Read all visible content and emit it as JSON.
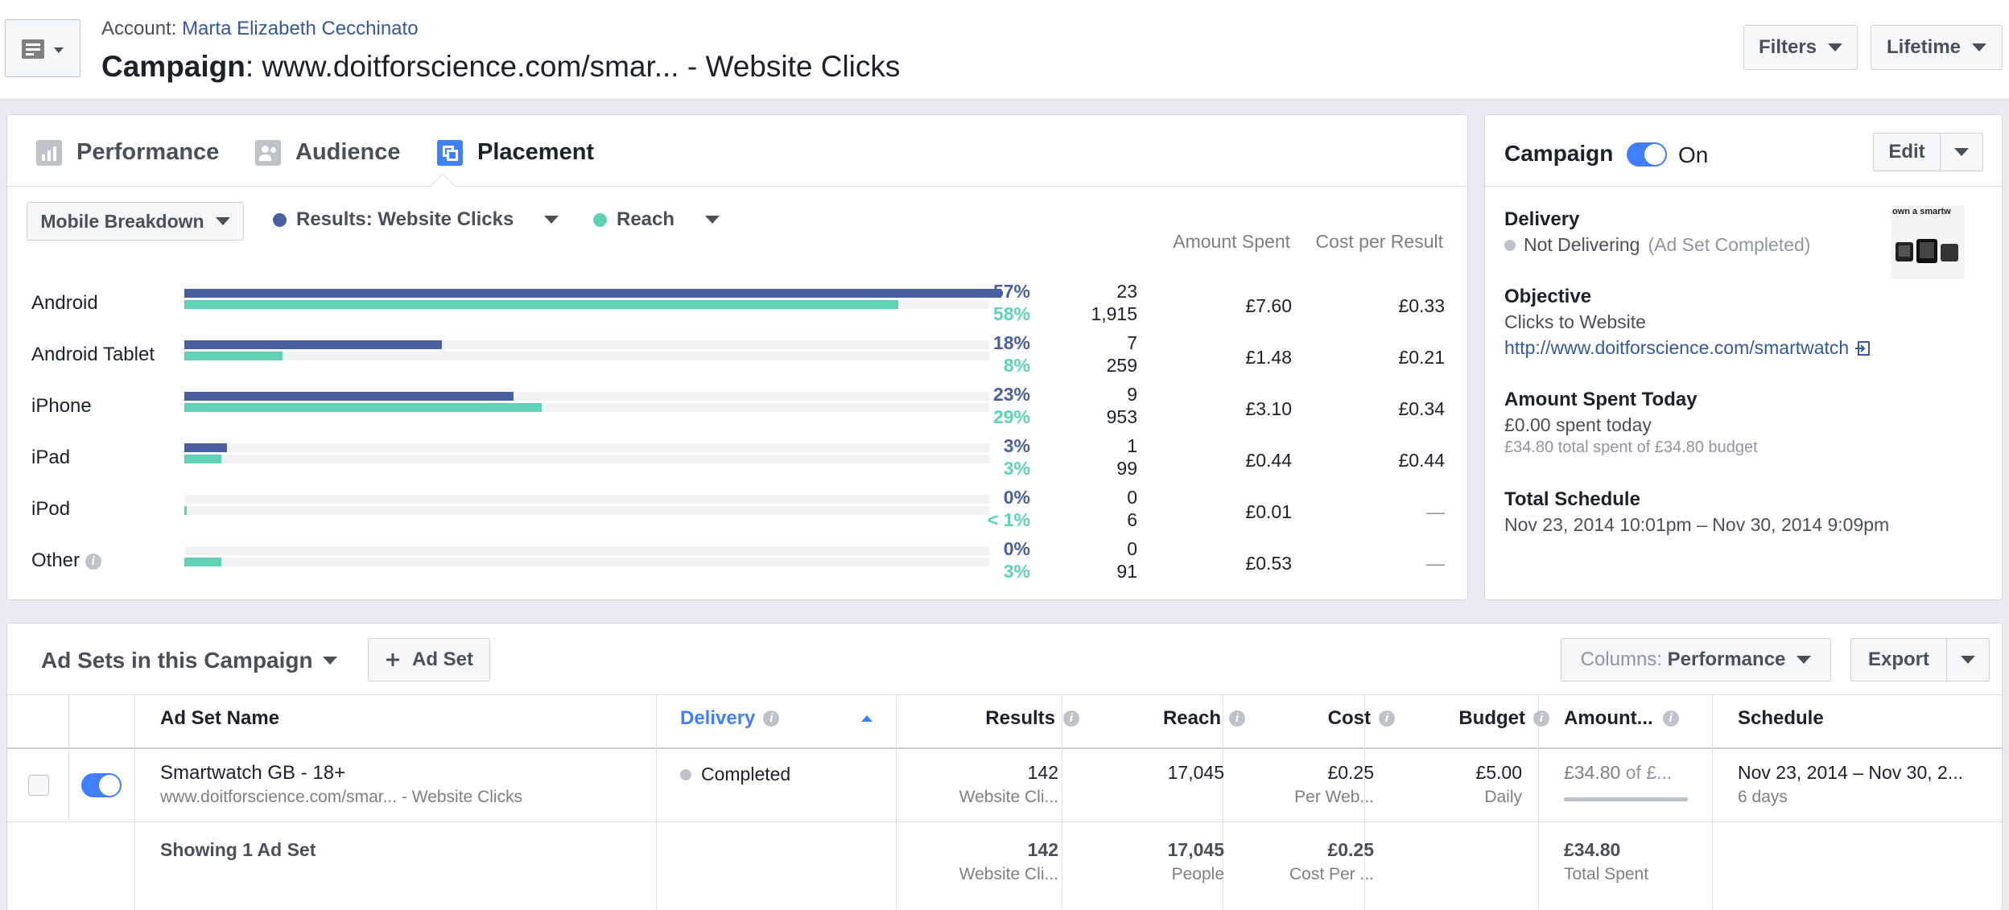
{
  "header": {
    "account_label": "Account",
    "account_name": "Marta Elizabeth Cecchinato",
    "campaign_label": "Campaign",
    "campaign_name": ": www.doitforscience.com/smar... - Website Clicks",
    "filters_label": "Filters",
    "lifetime_label": "Lifetime"
  },
  "tabs": [
    {
      "label": "Performance",
      "icon": "bar-chart-icon"
    },
    {
      "label": "Audience",
      "icon": "people-icon"
    },
    {
      "label": "Placement",
      "icon": "placement-icon"
    }
  ],
  "breakdown": {
    "dropdown_label": "Mobile Breakdown",
    "legend_results": "Results: Website Clicks",
    "legend_reach": "Reach",
    "col_amount": "Amount Spent",
    "col_cpr": "Cost per Result",
    "rows": [
      {
        "label": "Android",
        "results_pct": "57%",
        "reach_pct": "58%",
        "results": "23",
        "reach": "1,915",
        "amount": "£7.60",
        "cpr": "£0.33",
        "results_frac": 0.57,
        "reach_frac": 0.58
      },
      {
        "label": "Android Tablet",
        "results_pct": "18%",
        "reach_pct": "8%",
        "results": "7",
        "reach": "259",
        "amount": "£1.48",
        "cpr": "£0.21",
        "results_frac": 0.18,
        "reach_frac": 0.08
      },
      {
        "label": "iPhone",
        "results_pct": "23%",
        "reach_pct": "29%",
        "results": "9",
        "reach": "953",
        "amount": "£3.10",
        "cpr": "£0.34",
        "results_frac": 0.23,
        "reach_frac": 0.29
      },
      {
        "label": "iPad",
        "results_pct": "3%",
        "reach_pct": "3%",
        "results": "1",
        "reach": "99",
        "amount": "£0.44",
        "cpr": "£0.44",
        "results_frac": 0.03,
        "reach_frac": 0.03
      },
      {
        "label": "iPod",
        "results_pct": "0%",
        "reach_pct": "< 1%",
        "results": "0",
        "reach": "6",
        "amount": "£0.01",
        "cpr": "—",
        "results_frac": 0.0,
        "reach_frac": 0.002
      },
      {
        "label": "Other",
        "results_pct": "0%",
        "reach_pct": "3%",
        "results": "0",
        "reach": "91",
        "amount": "£0.53",
        "cpr": "—",
        "results_frac": 0.0,
        "reach_frac": 0.03
      }
    ]
  },
  "summary": {
    "title": "Campaign",
    "status": "On",
    "edit_label": "Edit",
    "delivery_heading": "Delivery",
    "delivery_status": "Not Delivering",
    "delivery_note": "(Ad Set Completed)",
    "objective_heading": "Objective",
    "objective_value": "Clicks to Website",
    "objective_url": "http://www.doitforscience.com/smartwatch",
    "spent_heading": "Amount Spent Today",
    "spent_today": "£0.00 spent today",
    "spent_total": "£34.80 total spent of £34.80 budget",
    "schedule_heading": "Total Schedule",
    "schedule_value": "Nov 23, 2014 10:01pm – Nov 30, 2014 9:09pm",
    "thumb_text": "own a smartw"
  },
  "adsets": {
    "title": "Ad Sets in this Campaign",
    "add_label": "Ad Set",
    "columns_label": "Columns:",
    "columns_value": "Performance",
    "export_label": "Export",
    "headers": {
      "name": "Ad Set Name",
      "delivery": "Delivery",
      "results": "Results",
      "reach": "Reach",
      "cost": "Cost",
      "budget": "Budget",
      "amount": "Amount...",
      "schedule": "Schedule"
    },
    "row": {
      "name": "Smartwatch GB - 18+",
      "campaign": "www.doitforscience.com/smar... - Website Clicks",
      "delivery": "Completed",
      "results": "142",
      "results_sub": "Website Cli...",
      "reach": "17,045",
      "cost": "£0.25",
      "cost_sub": "Per Web...",
      "budget": "£5.00",
      "budget_sub": "Daily",
      "amount": "£34.80",
      "amount_of": "of £...",
      "schedule": "Nov 23, 2014 – Nov 30, 2...",
      "schedule_sub": "6 days"
    },
    "footer": {
      "label": "Showing 1 Ad Set",
      "results": "142",
      "results_sub": "Website Cli...",
      "reach": "17,045",
      "reach_sub": "People",
      "cost": "£0.25",
      "cost_sub": "Cost Per ...",
      "amount": "£34.80",
      "amount_sub": "Total Spent"
    }
  },
  "colors": {
    "results": "#4a5fa0",
    "reach": "#5ed2b2",
    "accent": "#4080ff",
    "link": "#365899"
  }
}
